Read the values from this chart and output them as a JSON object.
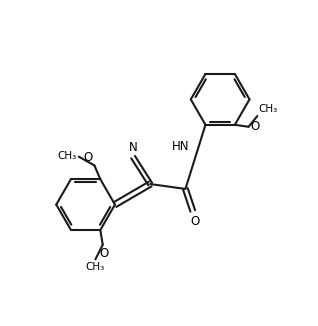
{
  "background": "#ffffff",
  "line_color": "#1a1a1a",
  "text_color": "#000000",
  "bond_lw": 1.5,
  "font_size": 8.5,
  "fig_width": 3.18,
  "fig_height": 3.26,
  "dpi": 100,
  "xlim": [
    0.0,
    6.5
  ],
  "ylim": [
    0.0,
    6.5
  ]
}
